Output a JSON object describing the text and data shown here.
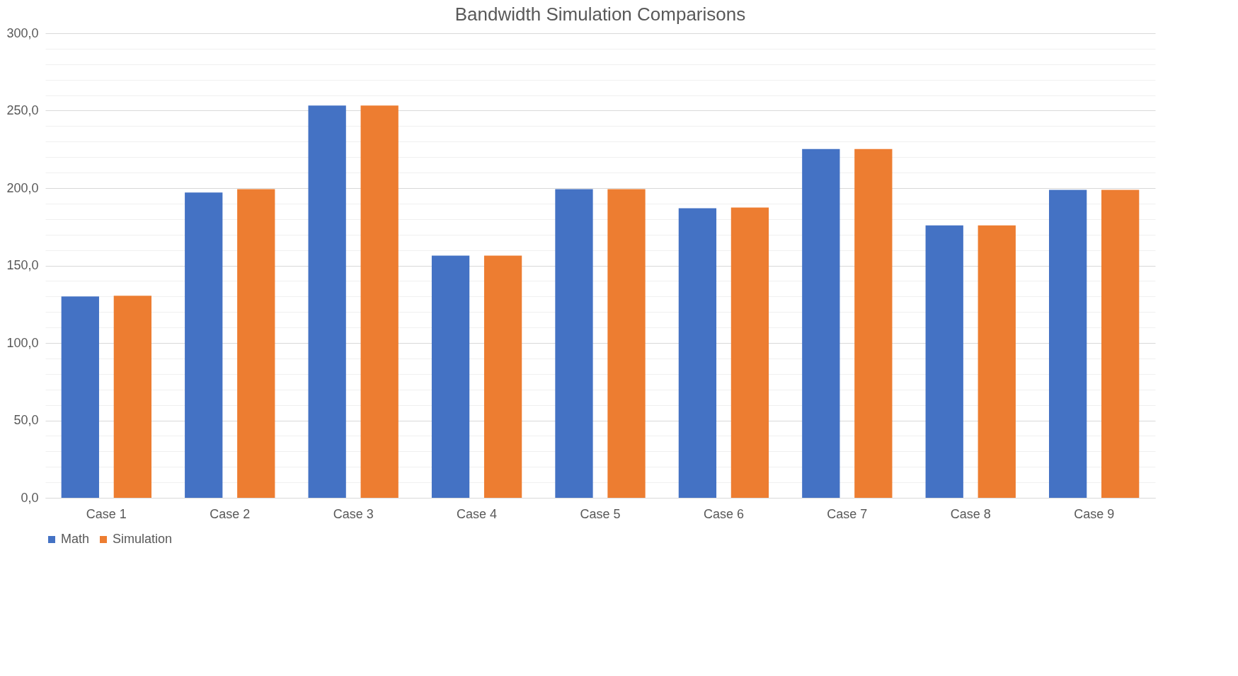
{
  "chart_data": {
    "type": "bar",
    "title": "Bandwidth Simulation Comparisons",
    "categories": [
      "Case 1",
      "Case 2",
      "Case 3",
      "Case 4",
      "Case 5",
      "Case 6",
      "Case 7",
      "Case 8",
      "Case 9"
    ],
    "series": [
      {
        "name": "Math",
        "color": "#4472c4",
        "values": [
          130.0,
          197.2,
          253.3,
          156.4,
          199.3,
          187.0,
          225.2,
          175.9,
          198.9
        ]
      },
      {
        "name": "Simulation",
        "color": "#ed7d31",
        "values": [
          130.5,
          199.3,
          253.3,
          156.4,
          199.3,
          187.4,
          225.2,
          175.9,
          198.9
        ]
      }
    ],
    "ylim": [
      0,
      300
    ],
    "yticks": [
      {
        "value": 0,
        "label": "0,0"
      },
      {
        "value": 10,
        "label": null
      },
      {
        "value": 20,
        "label": null
      },
      {
        "value": 30,
        "label": null
      },
      {
        "value": 40,
        "label": null
      },
      {
        "value": 50,
        "label": "50,0"
      },
      {
        "value": 60,
        "label": null
      },
      {
        "value": 70,
        "label": null
      },
      {
        "value": 80,
        "label": null
      },
      {
        "value": 90,
        "label": null
      },
      {
        "value": 100,
        "label": "100,0"
      },
      {
        "value": 110,
        "label": null
      },
      {
        "value": 120,
        "label": null
      },
      {
        "value": 130,
        "label": null
      },
      {
        "value": 140,
        "label": null
      },
      {
        "value": 150,
        "label": "150,0"
      },
      {
        "value": 160,
        "label": null
      },
      {
        "value": 170,
        "label": null
      },
      {
        "value": 180,
        "label": null
      },
      {
        "value": 190,
        "label": null
      },
      {
        "value": 200,
        "label": "200,0"
      },
      {
        "value": 210,
        "label": null
      },
      {
        "value": 220,
        "label": null
      },
      {
        "value": 230,
        "label": null
      },
      {
        "value": 240,
        "label": null
      },
      {
        "value": 250,
        "label": "250,0"
      },
      {
        "value": 260,
        "label": null
      },
      {
        "value": 270,
        "label": null
      },
      {
        "value": 280,
        "label": null
      },
      {
        "value": 290,
        "label": null
      },
      {
        "value": 300,
        "label": "300,0"
      }
    ],
    "grid": "y",
    "legend": "bottom"
  }
}
